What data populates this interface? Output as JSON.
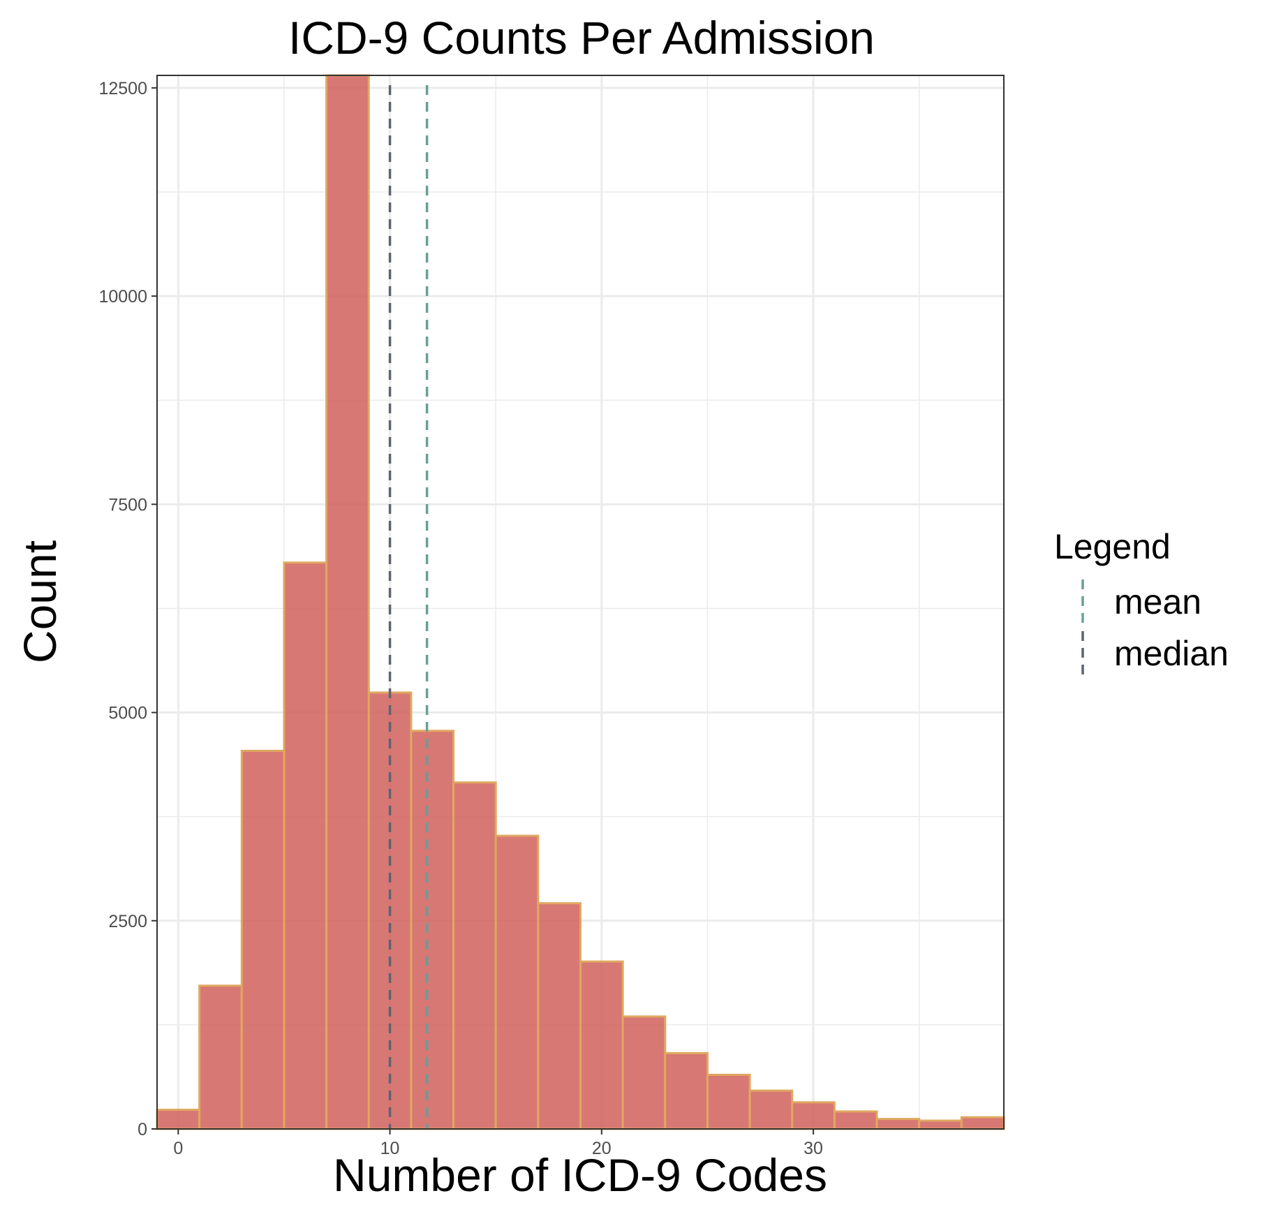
{
  "chart_data": {
    "type": "bar",
    "title": "ICD-9 Counts Per Admission",
    "xlabel": "Number of ICD-9 Codes",
    "ylabel": "Count",
    "xlim": [
      -1,
      39
    ],
    "ylim": [
      0,
      12650
    ],
    "x_ticks": [
      0,
      10,
      20,
      30
    ],
    "y_ticks": [
      0,
      2500,
      5000,
      7500,
      10000,
      12500
    ],
    "bin_width": 2,
    "bins": [
      {
        "center": 0,
        "count": 230
      },
      {
        "center": 2,
        "count": 1720
      },
      {
        "center": 4,
        "count": 4540
      },
      {
        "center": 6,
        "count": 6800
      },
      {
        "center": 8,
        "count": 12700
      },
      {
        "center": 10,
        "count": 5240
      },
      {
        "center": 12,
        "count": 4780
      },
      {
        "center": 14,
        "count": 4160
      },
      {
        "center": 16,
        "count": 3520
      },
      {
        "center": 18,
        "count": 2710
      },
      {
        "center": 20,
        "count": 2010
      },
      {
        "center": 22,
        "count": 1350
      },
      {
        "center": 24,
        "count": 910
      },
      {
        "center": 26,
        "count": 650
      },
      {
        "center": 28,
        "count": 460
      },
      {
        "center": 30,
        "count": 320
      },
      {
        "center": 32,
        "count": 210
      },
      {
        "center": 34,
        "count": 120
      },
      {
        "center": 36,
        "count": 100
      },
      {
        "center": 38,
        "count": 140
      }
    ],
    "reference_lines": [
      {
        "name": "mean",
        "value": 11.75,
        "color": "#6b9e97"
      },
      {
        "name": "median",
        "value": 10,
        "color": "#5c6470"
      }
    ],
    "legend": {
      "title": "Legend",
      "placement": "right"
    },
    "grid": true,
    "bar_fill": "#d0605c",
    "bar_stroke": "#e0a860"
  }
}
